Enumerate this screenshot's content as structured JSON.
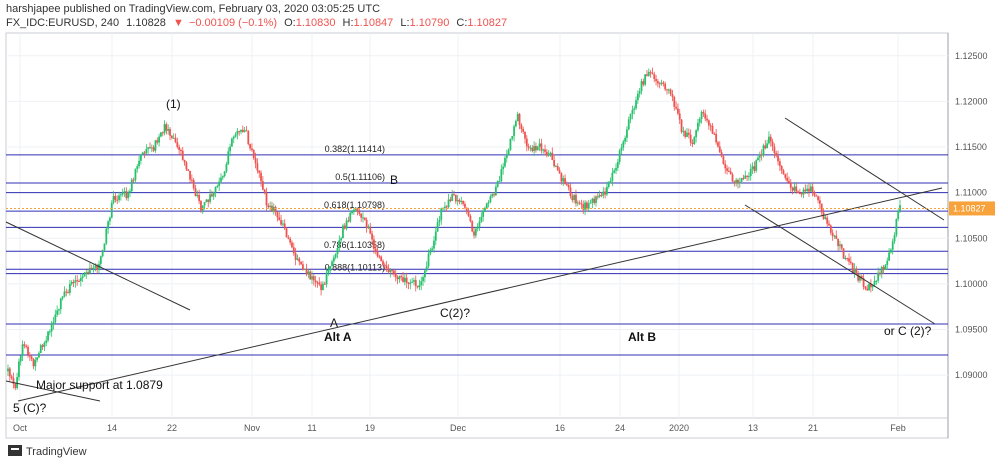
{
  "header": {
    "published_line": "harshjapee published on TradingView.com, February 03, 2020 03:05:25 UTC",
    "symbol": "FX_IDC:EURUSD, 240",
    "last": "1.10828",
    "change": "−0.00109 (−0.1%)",
    "open_label": "O:",
    "open": "1.10830",
    "high_label": "H:",
    "high": "1.10847",
    "low_label": "L:",
    "low": "1.10790",
    "close_label": "C:",
    "close": "1.10827"
  },
  "footer": {
    "brand": "TradingView"
  },
  "colors": {
    "up": "#26c26b",
    "down": "#ef5350",
    "level": "#2f2fb5",
    "trend": "#333333",
    "price_line": "#f7a23b",
    "grid": "#eef0f4"
  },
  "chart_data": {
    "type": "candlestick",
    "x_ticks": [
      "Oct",
      "14",
      "22",
      "Nov",
      "11",
      "19",
      "Dec",
      "16",
      "24",
      "2020",
      "13",
      "21",
      "Feb"
    ],
    "y_ticks": [
      "1.12500",
      "1.12000",
      "1.11500",
      "1.11000",
      "1.10500",
      "1.10000",
      "1.09500",
      "1.09000"
    ],
    "ylim": [
      1.0853,
      1.1275
    ],
    "last_price": "1.10827",
    "last_price_value": 1.10827,
    "horizontal_levels": [
      1.11414,
      1.11106,
      1.11,
      1.10798,
      1.1062,
      1.10358,
      1.1016,
      1.10113,
      1.0956,
      1.0922
    ],
    "fib_labels": [
      {
        "text": "0.382(1.11414)",
        "value": 1.11414
      },
      {
        "text": "0.5(1.11106)",
        "value": 1.11106
      },
      {
        "text": "0.618(1.10798)",
        "value": 1.10798
      },
      {
        "text": "0.786(1.10358)",
        "value": 1.10358
      },
      {
        "text": "0.888(1.10113)",
        "value": 1.10113
      }
    ],
    "annotations": [
      "(1)",
      "B",
      "A",
      "C(2)?",
      "Alt A",
      "Alt B",
      "or C (2)?",
      "Major support at 1.0879",
      "5 (C)?"
    ],
    "waypoints": [
      [
        0,
        1.0908
      ],
      [
        4,
        1.0888
      ],
      [
        8,
        1.0938
      ],
      [
        14,
        1.0912
      ],
      [
        22,
        1.0945
      ],
      [
        30,
        1.0985
      ],
      [
        36,
        1.1002
      ],
      [
        42,
        1.1012
      ],
      [
        50,
        1.102
      ],
      [
        58,
        1.1095
      ],
      [
        66,
        1.1098
      ],
      [
        72,
        1.1138
      ],
      [
        80,
        1.115
      ],
      [
        86,
        1.1172
      ],
      [
        94,
        1.115
      ],
      [
        100,
        1.1115
      ],
      [
        106,
        1.1085
      ],
      [
        112,
        1.1098
      ],
      [
        118,
        1.1118
      ],
      [
        124,
        1.1165
      ],
      [
        130,
        1.117
      ],
      [
        136,
        1.1132
      ],
      [
        142,
        1.109
      ],
      [
        148,
        1.1075
      ],
      [
        154,
        1.105
      ],
      [
        160,
        1.102
      ],
      [
        166,
        1.1008
      ],
      [
        172,
        1.0995
      ],
      [
        178,
        1.1022
      ],
      [
        184,
        1.106
      ],
      [
        190,
        1.1085
      ],
      [
        196,
        1.107
      ],
      [
        202,
        1.1035
      ],
      [
        208,
        1.1015
      ],
      [
        214,
        1.1008
      ],
      [
        220,
        1.1002
      ],
      [
        226,
        1.1
      ],
      [
        232,
        1.1035
      ],
      [
        238,
        1.108
      ],
      [
        244,
        1.1095
      ],
      [
        250,
        1.109
      ],
      [
        256,
        1.1055
      ],
      [
        262,
        1.1085
      ],
      [
        268,
        1.1105
      ],
      [
        274,
        1.114
      ],
      [
        280,
        1.1185
      ],
      [
        286,
        1.1145
      ],
      [
        292,
        1.115
      ],
      [
        298,
        1.114
      ],
      [
        304,
        1.1115
      ],
      [
        310,
        1.1095
      ],
      [
        316,
        1.1085
      ],
      [
        322,
        1.109
      ],
      [
        328,
        1.11
      ],
      [
        334,
        1.113
      ],
      [
        340,
        1.117
      ],
      [
        346,
        1.121
      ],
      [
        352,
        1.1235
      ],
      [
        358,
        1.122
      ],
      [
        364,
        1.121
      ],
      [
        370,
        1.117
      ],
      [
        376,
        1.1155
      ],
      [
        382,
        1.119
      ],
      [
        388,
        1.116
      ],
      [
        394,
        1.113
      ],
      [
        400,
        1.111
      ],
      [
        406,
        1.1115
      ],
      [
        412,
        1.1135
      ],
      [
        418,
        1.116
      ],
      [
        424,
        1.113
      ],
      [
        430,
        1.1105
      ],
      [
        436,
        1.11
      ],
      [
        442,
        1.1105
      ],
      [
        448,
        1.1075
      ],
      [
        454,
        1.105
      ],
      [
        460,
        1.1028
      ],
      [
        466,
        1.101
      ],
      [
        472,
        1.0995
      ],
      [
        478,
        1.1008
      ],
      [
        484,
        1.103
      ],
      [
        490,
        1.1085
      ]
    ]
  }
}
